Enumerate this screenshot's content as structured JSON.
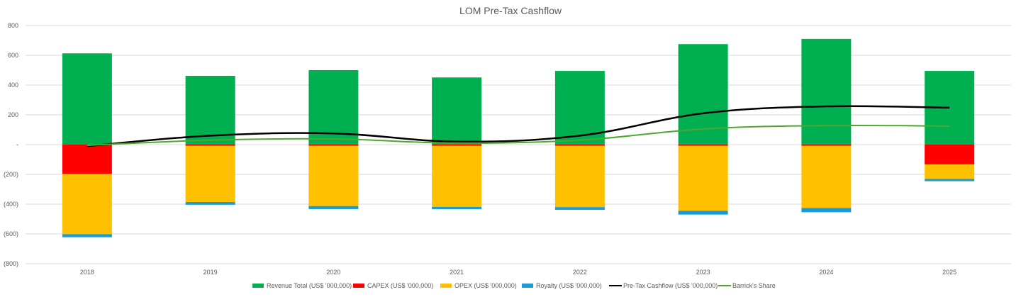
{
  "chart_data": {
    "type": "bar",
    "stacked": true,
    "title": "LOM Pre-Tax Cashflow",
    "xlabel": "",
    "ylabel": "",
    "categories": [
      "2018",
      "2019",
      "2020",
      "2021",
      "2022",
      "2023",
      "2024",
      "2025"
    ],
    "ylim": [
      -800,
      800
    ],
    "yticks": [
      800,
      600,
      400,
      200,
      0,
      -200,
      -400,
      -600,
      -800
    ],
    "ytick_labels": [
      "800",
      "600",
      "400",
      "200",
      "-",
      "(200)",
      "(400)",
      "(600)",
      "(800)"
    ],
    "grid": true,
    "legend_position": "bottom",
    "series": [
      {
        "name": "Revenue Total (US$ '000,000)",
        "kind": "bar",
        "color": "#00B050",
        "values": [
          613,
          462,
          500,
          451,
          495,
          675,
          710,
          495
        ]
      },
      {
        "name": "CAPEX (US$ '000,000)",
        "kind": "bar",
        "color": "#FF0000",
        "values": [
          -197,
          -8,
          -8,
          -8,
          -8,
          -8,
          -8,
          -133
        ]
      },
      {
        "name": "OPEX (US$ '000,000)",
        "kind": "bar",
        "color": "#FFC000",
        "values": [
          -405,
          -378,
          -405,
          -410,
          -412,
          -437,
          -418,
          -98
        ]
      },
      {
        "name": "Royalty (US$ '000,000)",
        "kind": "bar",
        "color": "#1A9BD7",
        "values": [
          -20,
          -18,
          -20,
          -16,
          -18,
          -25,
          -28,
          -15
        ]
      },
      {
        "name": "Pre-Tax Cashflow (US$ '000,000)",
        "kind": "line",
        "color": "#000000",
        "values": [
          -10,
          60,
          75,
          20,
          60,
          210,
          257,
          248
        ]
      },
      {
        "name": "Barrick's Share",
        "kind": "line",
        "color": "#4EA72E",
        "values": [
          -5,
          30,
          38,
          10,
          30,
          105,
          128,
          124
        ]
      }
    ]
  }
}
